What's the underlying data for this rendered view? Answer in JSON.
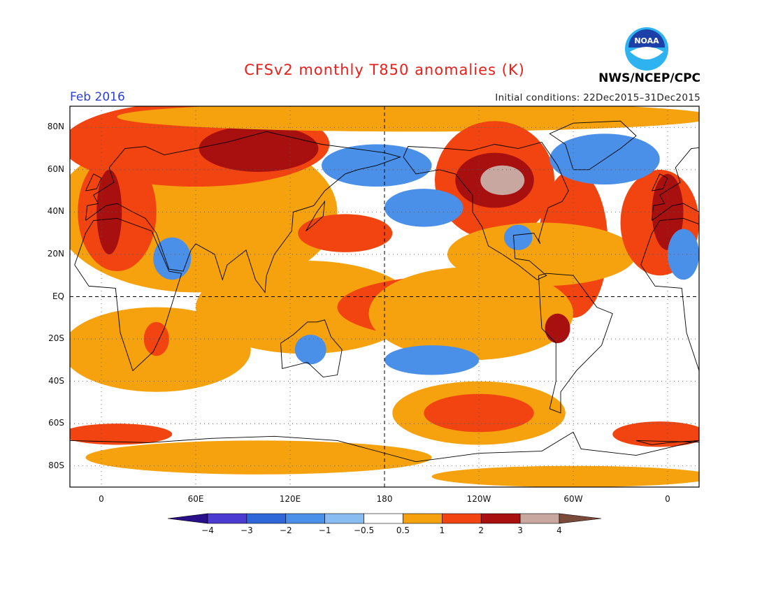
{
  "title": "CFSv2 monthly T850 anomalies (K)",
  "valid_month": "Feb 2016",
  "initial_conditions": "Initial conditions: 22Dec2015–31Dec2015",
  "organization": "NWS/NCEP/CPC",
  "logo": {
    "text": "NOAA",
    "icon": "noaa-logo-icon",
    "colors": {
      "ring": "#2fb3f0",
      "center": "#1d3fa8"
    }
  },
  "map": {
    "projection": "equirectangular",
    "lon_range": [
      -20,
      380
    ],
    "lat_range": [
      -90,
      90
    ],
    "grid": true,
    "lat_labels": [
      "80N",
      "60N",
      "40N",
      "20N",
      "EQ",
      "20S",
      "40S",
      "60S",
      "80S"
    ],
    "lon_labels": [
      "0",
      "60E",
      "120E",
      "180",
      "120W",
      "60W",
      "0"
    ]
  },
  "colorbar": {
    "labels": [
      "−4",
      "−3",
      "−2",
      "−1",
      "−0.5",
      "0.5",
      "1",
      "2",
      "3",
      "4"
    ],
    "colors": [
      "#2a0f8a",
      "#4b3bd0",
      "#2f67d8",
      "#4a8fe8",
      "#89bdf2",
      "#ffffff",
      "#f5a20e",
      "#f24410",
      "#a81010",
      "#c7a79f",
      "#7a4a3a"
    ]
  },
  "anomaly_regions": [
    {
      "level": "1",
      "color": "#f5a20e",
      "lon": 60,
      "lat": 40,
      "rx": 90,
      "ry": 38
    },
    {
      "level": "2",
      "color": "#f24410",
      "lon": 60,
      "lat": 72,
      "rx": 85,
      "ry": 20
    },
    {
      "level": "3",
      "color": "#a81010",
      "lon": 100,
      "lat": 70,
      "rx": 38,
      "ry": 11
    },
    {
      "level": "2",
      "color": "#f24410",
      "lon": 10,
      "lat": 40,
      "rx": 25,
      "ry": 28
    },
    {
      "level": "3",
      "color": "#a81010",
      "lon": 5,
      "lat": 40,
      "rx": 8,
      "ry": 20
    },
    {
      "level": "1",
      "color": "#f5a20e",
      "lon": 200,
      "lat": 85,
      "rx": 190,
      "ry": 7
    },
    {
      "level": "2",
      "color": "#f24410",
      "lon": 250,
      "lat": 55,
      "rx": 38,
      "ry": 28
    },
    {
      "level": "3",
      "color": "#a81010",
      "lon": 250,
      "lat": 55,
      "rx": 25,
      "ry": 13
    },
    {
      "level": "4",
      "color": "#c7a79f",
      "lon": 255,
      "lat": 55,
      "rx": 14,
      "ry": 7
    },
    {
      "level": "2",
      "color": "#f24410",
      "lon": 300,
      "lat": 25,
      "rx": 22,
      "ry": 35
    },
    {
      "level": "1",
      "color": "#f5a20e",
      "lon": 280,
      "lat": 20,
      "rx": 60,
      "ry": 15
    },
    {
      "level": "2",
      "color": "#f24410",
      "lon": 355,
      "lat": 35,
      "rx": 25,
      "ry": 25
    },
    {
      "level": "3",
      "color": "#a81010",
      "lon": 360,
      "lat": 40,
      "rx": 10,
      "ry": 18
    },
    {
      "level": "2",
      "color": "#f24410",
      "lon": 155,
      "lat": 30,
      "rx": 30,
      "ry": 9
    },
    {
      "level": "1",
      "color": "#f5a20e",
      "lon": 130,
      "lat": -5,
      "rx": 70,
      "ry": 22
    },
    {
      "level": "2",
      "color": "#f24410",
      "lon": 225,
      "lat": -5,
      "rx": 75,
      "ry": 15
    },
    {
      "level": "1",
      "color": "#f5a20e",
      "lon": 235,
      "lat": -8,
      "rx": 65,
      "ry": 22
    },
    {
      "level": "3",
      "color": "#a81010",
      "lon": 290,
      "lat": -15,
      "rx": 8,
      "ry": 7
    },
    {
      "level": "1",
      "color": "#f5a20e",
      "lon": 35,
      "lat": -25,
      "rx": 60,
      "ry": 20
    },
    {
      "level": "2",
      "color": "#f24410",
      "lon": 35,
      "lat": -20,
      "rx": 8,
      "ry": 8
    },
    {
      "level": "1",
      "color": "#f5a20e",
      "lon": 240,
      "lat": -55,
      "rx": 55,
      "ry": 15
    },
    {
      "level": "2",
      "color": "#f24410",
      "lon": 240,
      "lat": -55,
      "rx": 35,
      "ry": 9
    },
    {
      "level": "2",
      "color": "#f24410",
      "lon": 10,
      "lat": -65,
      "rx": 35,
      "ry": 5
    },
    {
      "level": "1",
      "color": "#f5a20e",
      "lon": 100,
      "lat": -76,
      "rx": 110,
      "ry": 8
    },
    {
      "level": "1",
      "color": "#f5a20e",
      "lon": 300,
      "lat": -85,
      "rx": 90,
      "ry": 5
    },
    {
      "level": "2",
      "color": "#f24410",
      "lon": 355,
      "lat": -65,
      "rx": 30,
      "ry": 6
    },
    {
      "level": "-1",
      "color": "#4a8fe8",
      "lon": 175,
      "lat": 62,
      "rx": 35,
      "ry": 10
    },
    {
      "level": "-1",
      "color": "#4a8fe8",
      "lon": 205,
      "lat": 42,
      "rx": 25,
      "ry": 9
    },
    {
      "level": "-1",
      "color": "#4a8fe8",
      "lon": 320,
      "lat": 65,
      "rx": 35,
      "ry": 12
    },
    {
      "level": "-1",
      "color": "#4a8fe8",
      "lon": 45,
      "lat": 18,
      "rx": 12,
      "ry": 10
    },
    {
      "level": "-1",
      "color": "#4a8fe8",
      "lon": 133,
      "lat": -25,
      "rx": 10,
      "ry": 7
    },
    {
      "level": "-1",
      "color": "#4a8fe8",
      "lon": 210,
      "lat": -30,
      "rx": 30,
      "ry": 7
    },
    {
      "level": "-1",
      "color": "#4a8fe8",
      "lon": 265,
      "lat": 28,
      "rx": 9,
      "ry": 6
    },
    {
      "level": "-1",
      "color": "#4a8fe8",
      "lon": 370,
      "lat": 20,
      "rx": 10,
      "ry": 12
    }
  ]
}
